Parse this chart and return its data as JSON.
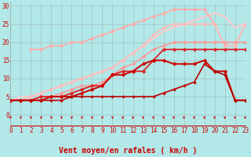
{
  "xlabel": "Vent moyen/en rafales ( km/h )",
  "bg_color": "#b2e8e8",
  "grid_color": "#999999",
  "ylim": [
    0,
    31
  ],
  "xlim": [
    0,
    23
  ],
  "yticks": [
    0,
    5,
    10,
    15,
    20,
    25,
    30
  ],
  "xticks": [
    0,
    1,
    2,
    3,
    4,
    5,
    6,
    7,
    8,
    9,
    10,
    11,
    12,
    13,
    14,
    15,
    16,
    17,
    18,
    19,
    20,
    21,
    22,
    23
  ],
  "lines": [
    {
      "x": [
        0,
        1,
        2,
        3,
        4,
        5,
        6,
        7,
        8,
        9,
        10,
        11,
        12,
        13,
        14,
        15,
        16,
        17,
        18,
        19,
        20,
        21,
        22,
        23
      ],
      "y": [
        4,
        5,
        5,
        6,
        7,
        8,
        9,
        10,
        11,
        12,
        13,
        15,
        17,
        19,
        21,
        23,
        24,
        25,
        26,
        27,
        28,
        27,
        24,
        25
      ],
      "color": "#ffcccc",
      "lw": 1.5,
      "marker": null,
      "ms": 0
    },
    {
      "x": [
        2,
        3,
        4,
        5,
        6,
        7,
        8,
        9,
        10,
        11,
        12,
        13,
        14,
        15,
        16,
        17,
        18,
        19,
        20,
        21,
        22,
        23
      ],
      "y": [
        18,
        18,
        19,
        19,
        20,
        20,
        21,
        22,
        23,
        24,
        25,
        26,
        27,
        28,
        29,
        29,
        29,
        29,
        25,
        19,
        19,
        25
      ],
      "color": "#ffaaaa",
      "lw": 1.2,
      "marker": "D",
      "ms": 2.5
    },
    {
      "x": [
        0,
        1,
        2,
        3,
        4,
        5,
        6,
        7,
        8,
        9,
        10,
        11,
        12,
        13,
        14,
        15,
        16,
        17,
        18,
        19,
        20,
        21,
        22,
        23
      ],
      "y": [
        4,
        4,
        5,
        6,
        7,
        8,
        9,
        10,
        11,
        12,
        13,
        15,
        17,
        19,
        22,
        24,
        25,
        25,
        25,
        25,
        25,
        19,
        19,
        25
      ],
      "color": "#ffbbbb",
      "lw": 1.3,
      "marker": "D",
      "ms": 2.5
    },
    {
      "x": [
        0,
        1,
        2,
        3,
        4,
        5,
        6,
        7,
        8,
        9,
        10,
        11,
        12,
        13,
        14,
        15,
        16,
        17,
        18,
        19,
        20,
        21,
        22,
        23
      ],
      "y": [
        4,
        4,
        4,
        5,
        5,
        6,
        7,
        8,
        8,
        9,
        11,
        13,
        14,
        16,
        18,
        19,
        20,
        20,
        20,
        20,
        20,
        20,
        20,
        20
      ],
      "color": "#ff9999",
      "lw": 1.2,
      "marker": "D",
      "ms": 2.5
    },
    {
      "x": [
        0,
        1,
        2,
        3,
        4,
        5,
        6,
        7,
        8,
        9,
        10,
        11,
        12,
        13,
        14,
        15,
        16,
        17,
        18,
        19,
        20,
        21,
        22,
        23
      ],
      "y": [
        4,
        4,
        4,
        5,
        5,
        5,
        6,
        7,
        8,
        8,
        11,
        12,
        12,
        12,
        15,
        18,
        18,
        18,
        18,
        18,
        18,
        18,
        18,
        18
      ],
      "color": "#dd2222",
      "lw": 1.3,
      "marker": "D",
      "ms": 2.5
    },
    {
      "x": [
        0,
        1,
        2,
        3,
        4,
        5,
        6,
        7,
        8,
        9,
        10,
        11,
        12,
        13,
        14,
        15,
        16,
        17,
        18,
        19,
        20,
        21,
        22,
        23
      ],
      "y": [
        4,
        4,
        4,
        4,
        5,
        5,
        5,
        6,
        7,
        8,
        11,
        11,
        12,
        14,
        15,
        15,
        14,
        14,
        14,
        15,
        12,
        12,
        4,
        4
      ],
      "color": "#cc0000",
      "lw": 1.4,
      "marker": "D",
      "ms": 2.5
    },
    {
      "x": [
        0,
        1,
        2,
        3,
        4,
        5,
        6,
        7,
        8,
        9,
        10,
        11,
        12,
        13,
        14,
        15,
        16,
        17,
        18,
        19,
        20,
        21,
        22,
        23
      ],
      "y": [
        4,
        4,
        4,
        4,
        4,
        4,
        5,
        5,
        5,
        5,
        5,
        5,
        5,
        5,
        5,
        6,
        7,
        8,
        9,
        14,
        12,
        11,
        4,
        4
      ],
      "color": "#bb0000",
      "lw": 1.2,
      "marker": "D",
      "ms": 2.0
    }
  ],
  "arrow_color": "#cc0000",
  "xlabel_color": "#cc0000",
  "xlabel_fontsize": 7,
  "tick_fontsize": 5.5,
  "tick_color": "#cc0000"
}
